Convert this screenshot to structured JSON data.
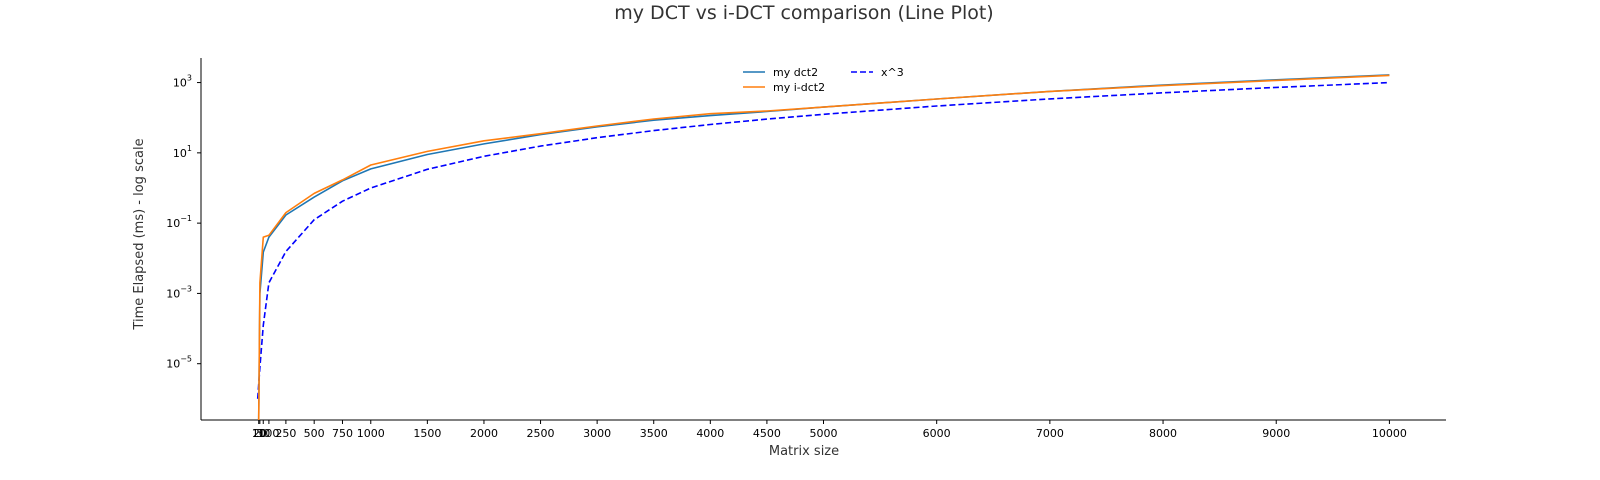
{
  "chart_data": {
    "type": "line",
    "title": "my DCT vs i-DCT comparison (Line Plot)",
    "xlabel": "Matrix size",
    "ylabel": "Time Elapsed (ms) - log scale",
    "yscale": "log",
    "xlim": [
      -500,
      10500
    ],
    "ylim": [
      2.5e-07,
      5000.0
    ],
    "x_ticks": [
      10,
      20,
      50,
      100,
      250,
      500,
      750,
      1000,
      1500,
      2000,
      2500,
      3000,
      3500,
      4000,
      4500,
      5000,
      6000,
      7000,
      8000,
      9000,
      10000
    ],
    "x_tick_labels": [
      "10",
      "20",
      "50",
      "100",
      "250",
      "500",
      "750",
      "1000",
      "1500",
      "2000",
      "2500",
      "3000",
      "3500",
      "4000",
      "4500",
      "5000",
      "6000",
      "7000",
      "8000",
      "9000",
      "10000"
    ],
    "y_ticks": [
      {
        "value": 1e-05,
        "base": "10",
        "exp": "−5"
      },
      {
        "value": 0.001,
        "base": "10",
        "exp": "−3"
      },
      {
        "value": 0.1,
        "base": "10",
        "exp": "−1"
      },
      {
        "value": 10,
        "base": "10",
        "exp": "1"
      },
      {
        "value": 1000,
        "base": "10",
        "exp": "3"
      }
    ],
    "legend_position": "top-center",
    "grid": false,
    "series": [
      {
        "name": "my dct2",
        "color": "#1f77b4",
        "style": "solid",
        "x": [
          10,
          20,
          50,
          100,
          250,
          500,
          750,
          1000,
          1500,
          2000,
          2500,
          3000,
          3500,
          4000,
          4500,
          5000,
          6000,
          7000,
          8000,
          9000,
          10000
        ],
        "y": [
          1e-07,
          0.001,
          0.015,
          0.04,
          0.17,
          0.55,
          1.6,
          3.5,
          9,
          18,
          33,
          55,
          85,
          115,
          150,
          200,
          340,
          560,
          850,
          1200,
          1650
        ]
      },
      {
        "name": "my i-dct2",
        "color": "#ff7f0e",
        "style": "solid",
        "x": [
          10,
          20,
          50,
          100,
          250,
          500,
          750,
          1000,
          1500,
          2000,
          2500,
          3000,
          3500,
          4000,
          4500,
          5000,
          6000,
          7000,
          8000,
          9000,
          10000
        ],
        "y": [
          1e-07,
          0.002,
          0.04,
          0.045,
          0.2,
          0.7,
          1.7,
          4.5,
          11,
          22,
          35,
          58,
          92,
          130,
          155,
          200,
          340,
          560,
          820,
          1150,
          1600
        ]
      },
      {
        "name": "x^3",
        "color": "#0000ff",
        "style": "dashed",
        "x": [
          1,
          20,
          50,
          100,
          250,
          500,
          750,
          1000,
          1500,
          2000,
          2500,
          3000,
          3500,
          4000,
          4500,
          5000,
          6000,
          7000,
          8000,
          9000,
          10000
        ],
        "y": [
          1e-06,
          8e-06,
          0.000125,
          0.002,
          0.0156,
          0.125,
          0.42,
          1,
          3.4,
          8,
          15.6,
          27,
          42.9,
          64,
          91,
          125,
          216,
          343,
          512,
          729,
          1000
        ]
      }
    ]
  }
}
